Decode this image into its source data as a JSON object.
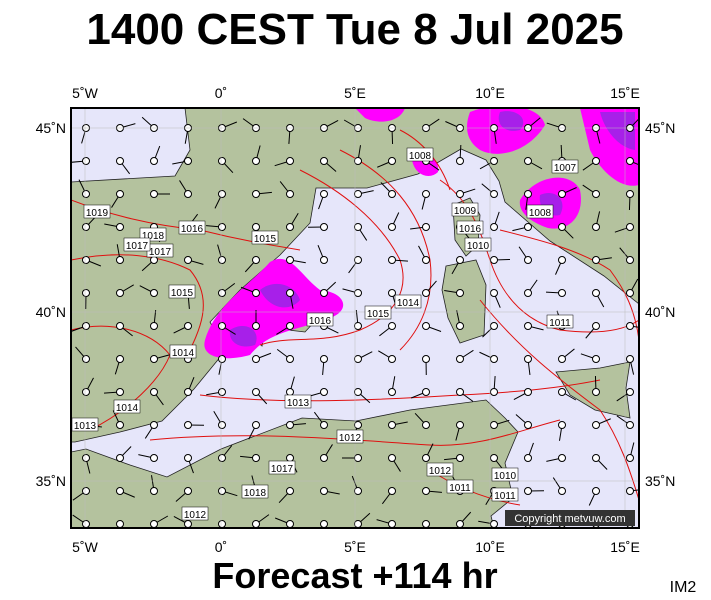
{
  "header": {
    "title": "1400 CEST Tue 8 Jul 2025"
  },
  "map": {
    "lon_labels": [
      "5˚W",
      "0˚",
      "5˚E",
      "10˚E",
      "15˚E"
    ],
    "lat_labels": [
      "45˚N",
      "40˚N",
      "35˚N"
    ],
    "isobar_labels": [
      "1019",
      "1018",
      "1017",
      "1016",
      "1015",
      "1016",
      "1017",
      "1015",
      "1014",
      "1014",
      "1013",
      "1013",
      "1012",
      "1016",
      "1015",
      "1014",
      "1011",
      "1008",
      "1008",
      "1007",
      "1009",
      "1010",
      "1012",
      "1011",
      "1010",
      "1011",
      "1012",
      "1018",
      "1017"
    ],
    "copyright": "Copyright metvuw.com"
  },
  "footer": {
    "forecast": "Forecast +114 hr",
    "code": "IM2"
  }
}
